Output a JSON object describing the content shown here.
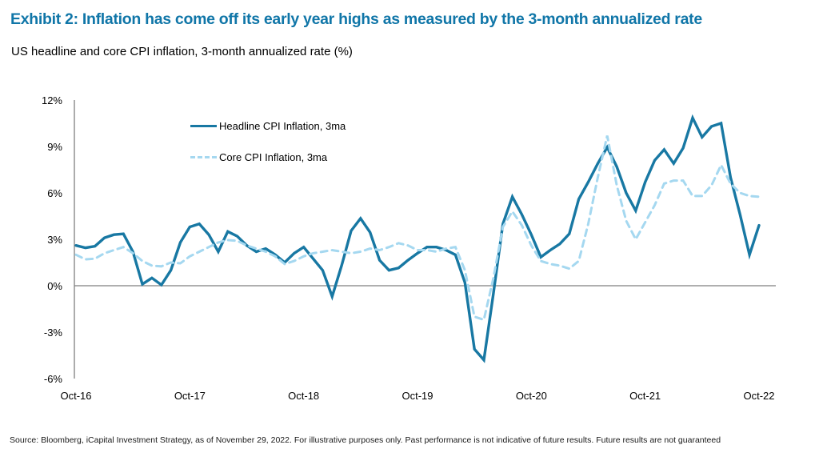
{
  "title": "Exhibit 2: Inflation has come off its early year highs as measured by the 3-month annualized rate",
  "subtitle": "US headline and core CPI inflation, 3-month annualized rate (%)",
  "source": "Source: Bloomberg, iCapital Investment Strategy, as of November 29, 2022. For illustrative purposes only. Past performance is not indicative of future results. Future results are not guaranteed",
  "colors": {
    "title": "#1076A8",
    "headline_line": "#1878A3",
    "core_line": "#A5D8F0",
    "axis": "#7F7F7F",
    "text": "#000000"
  },
  "chart_data": {
    "type": "line",
    "title": "US headline and core CPI inflation, 3-month annualized rate (%)",
    "x_frequency": "monthly",
    "x_start": "Oct-16",
    "x_end": "Oct-22",
    "ylim": [
      -6,
      12
    ],
    "grid": "zero-line-only",
    "legend_position": "top-left-inside-plot",
    "yticks": [
      {
        "label": "12%",
        "value": 12
      },
      {
        "label": "9%",
        "value": 9
      },
      {
        "label": "6%",
        "value": 6
      },
      {
        "label": "3%",
        "value": 3
      },
      {
        "label": "0%",
        "value": 0
      },
      {
        "label": "-3%",
        "value": -3
      },
      {
        "label": "-6%",
        "value": -6
      }
    ],
    "xticks": [
      {
        "label": "Oct-16",
        "month_index": 0
      },
      {
        "label": "Oct-17",
        "month_index": 12
      },
      {
        "label": "Oct-18",
        "month_index": 24
      },
      {
        "label": "Oct-19",
        "month_index": 36
      },
      {
        "label": "Oct-20",
        "month_index": 48
      },
      {
        "label": "Oct-21",
        "month_index": 60
      },
      {
        "label": "Oct-22",
        "month_index": 72
      }
    ],
    "series": [
      {
        "name": "Headline CPI Inflation, 3ma",
        "style": "solid",
        "color": "#1878A3",
        "values": [
          2.6,
          2.45,
          2.55,
          3.1,
          3.3,
          3.35,
          2.2,
          0.1,
          0.5,
          0.05,
          1.0,
          2.8,
          3.8,
          4.0,
          3.3,
          2.2,
          3.5,
          3.2,
          2.6,
          2.2,
          2.4,
          2.0,
          1.5,
          2.1,
          2.5,
          1.75,
          1.0,
          -0.7,
          1.3,
          3.55,
          4.35,
          3.45,
          1.65,
          1.0,
          1.15,
          1.65,
          2.1,
          2.5,
          2.5,
          2.3,
          2.0,
          0.2,
          -4.1,
          -4.8,
          -0.5,
          4.0,
          5.75,
          4.6,
          3.3,
          1.85,
          2.3,
          2.7,
          3.35,
          5.6,
          6.7,
          7.9,
          8.95,
          7.7,
          6.0,
          4.85,
          6.7,
          8.1,
          8.8,
          7.9,
          8.9,
          10.85,
          9.6,
          10.3,
          10.5,
          7.0,
          4.6,
          2.0,
          3.9
        ]
      },
      {
        "name": "Core CPI Inflation, 3ma",
        "style": "dashed",
        "color": "#A5D8F0",
        "values": [
          2.0,
          1.7,
          1.75,
          2.1,
          2.3,
          2.5,
          2.1,
          1.6,
          1.3,
          1.25,
          1.5,
          1.45,
          1.9,
          2.2,
          2.5,
          2.8,
          2.95,
          2.9,
          2.6,
          2.4,
          2.2,
          1.9,
          1.4,
          1.6,
          1.9,
          2.1,
          2.2,
          2.3,
          2.2,
          2.1,
          2.2,
          2.4,
          2.3,
          2.5,
          2.75,
          2.6,
          2.3,
          2.3,
          2.2,
          2.4,
          2.5,
          1.0,
          -2.0,
          -2.2,
          0.5,
          3.8,
          4.8,
          3.9,
          2.6,
          1.6,
          1.4,
          1.3,
          1.1,
          1.6,
          4.0,
          7.0,
          9.7,
          6.5,
          4.2,
          3.0,
          4.1,
          5.2,
          6.6,
          6.8,
          6.8,
          5.8,
          5.8,
          6.5,
          7.8,
          6.6,
          6.0,
          5.8,
          5.75
        ]
      }
    ]
  }
}
